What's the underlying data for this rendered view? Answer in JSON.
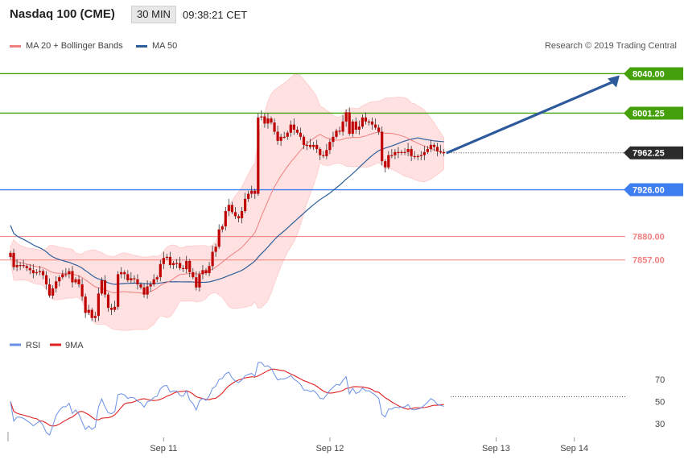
{
  "header": {
    "title": "Nasdaq 100 (CME)",
    "timeframe": "30 MIN",
    "time": "09:38:21 CET"
  },
  "legend": {
    "ma20": "MA 20 + Bollinger Bands",
    "ma50": "MA 50",
    "source": "Research © 2019 Trading Central"
  },
  "colors": {
    "green": "#44a10b",
    "blue": "#3d7ff0",
    "red_level": "#f07f7f",
    "candle": "#c00000",
    "band_fill": "#ffe1e1",
    "ma20": "#f08080",
    "ma50": "#2e5f9a",
    "arrow": "#2e5a9c",
    "last_price": "#2b2b2b",
    "rsi": "#6a8fe8",
    "ma9": "#e02020"
  },
  "chart_data": [
    {
      "type": "candlestick",
      "price_range": [
        7780,
        8057
      ],
      "x_labels": [
        {
          "label": "Sep 11",
          "index": 47
        },
        {
          "label": "Sep 12",
          "index": 98
        },
        {
          "label": "Sep 13",
          "index": 149
        },
        {
          "label": "Sep 14",
          "index": 173
        }
      ],
      "levels": [
        {
          "value": 8040.0,
          "label": "8040.00",
          "role": "resistance",
          "color": "green"
        },
        {
          "value": 8001.25,
          "label": "8001.25",
          "role": "resistance",
          "color": "green"
        },
        {
          "value": 7926.0,
          "label": "7926.00",
          "role": "pivot",
          "color": "blue"
        },
        {
          "value": 7880.0,
          "label": "7880.00",
          "role": "support",
          "color": "red"
        },
        {
          "value": 7857.0,
          "label": "7857.00",
          "role": "support",
          "color": "red"
        }
      ],
      "last_price": {
        "value": 7962.25,
        "label": "7962.25"
      },
      "projection": {
        "from": 7962,
        "to": 8040
      },
      "close": [
        7864,
        7850,
        7852,
        7852,
        7851,
        7849,
        7847,
        7844,
        7845,
        7846,
        7842,
        7833,
        7822,
        7829,
        7836,
        7840,
        7843,
        7843,
        7846,
        7835,
        7838,
        7833,
        7821,
        7805,
        7808,
        7800,
        7802,
        7824,
        7837,
        7823,
        7810,
        7808,
        7811,
        7843,
        7845,
        7843,
        7837,
        7839,
        7838,
        7833,
        7830,
        7823,
        7831,
        7833,
        7838,
        7840,
        7853,
        7859,
        7860,
        7852,
        7854,
        7854,
        7849,
        7848,
        7856,
        7845,
        7840,
        7830,
        7843,
        7847,
        7844,
        7851,
        7865,
        7870,
        7887,
        7890,
        7905,
        7911,
        7904,
        7900,
        7898,
        7905,
        7917,
        7922,
        7925,
        7922,
        7997,
        7998,
        7991,
        7996,
        7992,
        7983,
        7974,
        7978,
        7978,
        7982,
        7990,
        7985,
        7982,
        7978,
        7970,
        7970,
        7968,
        7970,
        7966,
        7960,
        7959,
        7965,
        7973,
        7978,
        7984,
        7983,
        7993,
        8002,
        7981,
        7993,
        7985,
        7988,
        7997,
        7993,
        7993,
        7990,
        7987,
        7983,
        7954,
        7948,
        7960,
        7960,
        7963,
        7962,
        7963,
        7963,
        7966,
        7959,
        7958,
        7959,
        7960,
        7963,
        7966,
        7970,
        7968,
        7964,
        7963,
        7962
      ],
      "rsi": {
        "levels": [
          70,
          50,
          30
        ],
        "range": [
          20,
          85
        ]
      },
      "rsi_legend": {
        "rsi": "RSI",
        "ma": "9MA"
      }
    }
  ]
}
